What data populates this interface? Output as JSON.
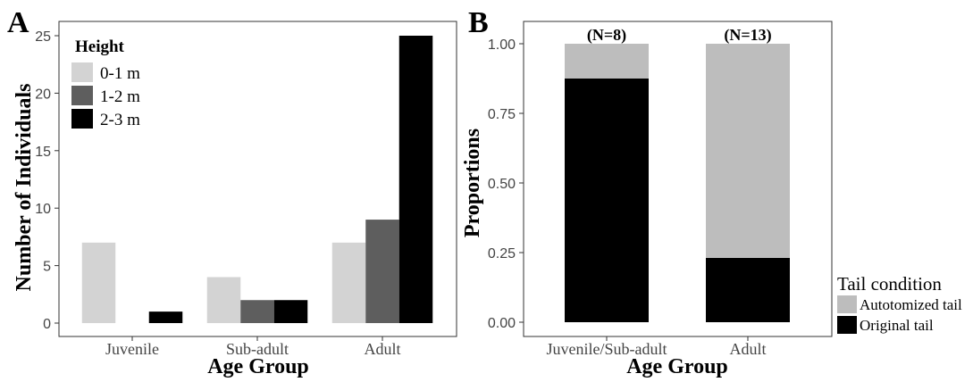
{
  "chart_data": [
    {
      "panel": "A",
      "type": "bar",
      "xlabel": "Age Group",
      "ylabel": "Number of Individuals",
      "ylim": [
        0,
        25
      ],
      "yticks": [
        "0",
        "5",
        "10",
        "15",
        "20",
        "25"
      ],
      "categories": [
        "Juvenile",
        "Sub-adult",
        "Adult"
      ],
      "legend_title": "Height",
      "legend_position": "top-left",
      "grid": false,
      "series": [
        {
          "name": "0-1 m",
          "color": "#d3d3d3",
          "values": [
            7,
            4,
            7
          ]
        },
        {
          "name": "1-2 m",
          "color": "#5e5e5e",
          "values": [
            0,
            2,
            9
          ]
        },
        {
          "name": "2-3 m",
          "color": "#000000",
          "values": [
            1,
            2,
            25
          ]
        }
      ]
    },
    {
      "panel": "B",
      "type": "bar",
      "stacked": true,
      "xlabel": "Age Group",
      "ylabel": "Proportions",
      "ylim": [
        0,
        1
      ],
      "yticks": [
        "0.00",
        "0.25",
        "0.50",
        "0.75",
        "1.00"
      ],
      "categories": [
        "Juvenile/Sub-adult",
        "Adult"
      ],
      "annotations": [
        "(N=8)",
        "(N=13)"
      ],
      "legend_title": "Tail condition",
      "legend_position": "bottom-right",
      "grid": false,
      "series": [
        {
          "name": "Original tail",
          "color": "#000000",
          "values": [
            0.875,
            0.231
          ]
        },
        {
          "name": "Autotomized tail",
          "color": "#bdbdbd",
          "values": [
            0.125,
            0.769
          ]
        }
      ]
    }
  ]
}
